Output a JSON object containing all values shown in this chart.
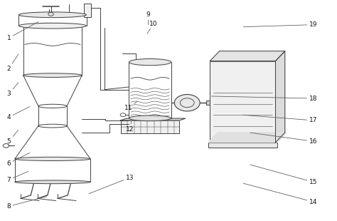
{
  "bg_color": "#ffffff",
  "lc": "#404040",
  "annotations": [
    [
      1,
      0.025,
      0.83,
      0.115,
      0.905
    ],
    [
      2,
      0.025,
      0.69,
      0.055,
      0.76
    ],
    [
      3,
      0.025,
      0.575,
      0.055,
      0.63
    ],
    [
      4,
      0.025,
      0.47,
      0.09,
      0.52
    ],
    [
      5,
      0.025,
      0.36,
      0.055,
      0.415
    ],
    [
      6,
      0.025,
      0.26,
      0.09,
      0.31
    ],
    [
      7,
      0.025,
      0.185,
      0.085,
      0.225
    ],
    [
      8,
      0.025,
      0.065,
      0.14,
      0.11
    ],
    [
      9,
      0.44,
      0.935,
      0.44,
      0.885
    ],
    [
      10,
      0.455,
      0.895,
      0.435,
      0.845
    ],
    [
      11,
      0.38,
      0.51,
      0.41,
      0.545
    ],
    [
      12,
      0.385,
      0.415,
      0.39,
      0.455
    ],
    [
      13,
      0.385,
      0.195,
      0.26,
      0.12
    ],
    [
      14,
      0.93,
      0.085,
      0.72,
      0.17
    ],
    [
      15,
      0.93,
      0.175,
      0.74,
      0.255
    ],
    [
      16,
      0.93,
      0.36,
      0.74,
      0.4
    ],
    [
      17,
      0.93,
      0.455,
      0.72,
      0.48
    ],
    [
      18,
      0.93,
      0.555,
      0.625,
      0.565
    ],
    [
      19,
      0.93,
      0.89,
      0.72,
      0.88
    ]
  ]
}
